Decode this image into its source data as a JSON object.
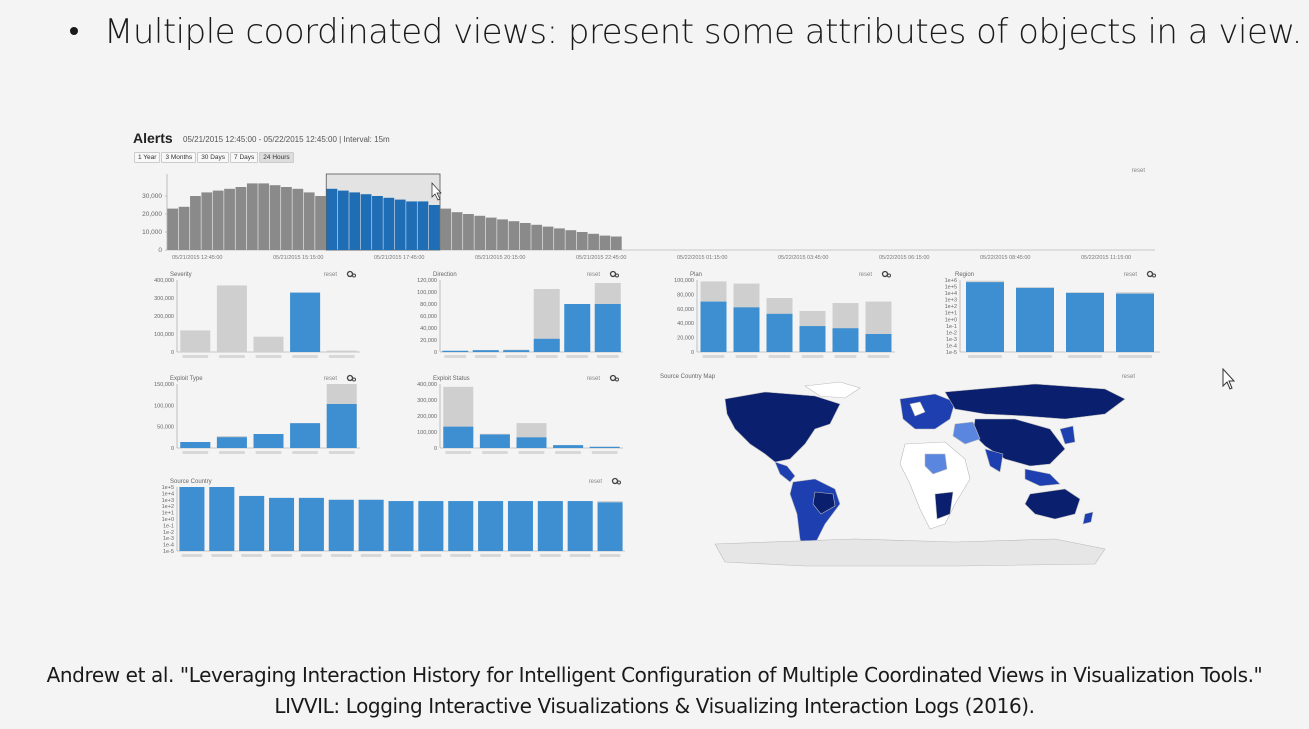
{
  "slide": {
    "bullet": "Multiple coordinated views: present some attributes of objects in a view.",
    "caption_line1": "Andrew et al. \"Leveraging Interaction History for Intelligent Configuration of Multiple Coordinated Views in Visualization Tools.\"",
    "caption_line2": "LIVVIL: Logging Interactive Visualizations & Visualizing Interaction Logs (2016)."
  },
  "dashboard": {
    "title": "Alerts",
    "range_text": "05/21/2015 12:45:00 - 05/22/2015 12:45:00 | Interval: 15m",
    "range_buttons": [
      "1 Year",
      "3 Months",
      "30 Days",
      "7 Days",
      "24 Hours"
    ],
    "active_range": "24 Hours",
    "reset_label": "reset"
  },
  "colors": {
    "selected": "#3d8fd1",
    "selected_dark": "#1f6db5",
    "unselected": "#8a8a8a",
    "light_gray": "#cfcfcf",
    "map_dark": "#0a1f6e",
    "map_mid": "#1d3fb0",
    "map_light": "#5b86e0"
  },
  "chart_data": [
    {
      "type": "bar",
      "name_id": "timeline",
      "x_ticks": [
        "05/21/2015 12:45:00",
        "05/21/2015 15:15:00",
        "05/21/2015 17:45:00",
        "05/21/2015 20:15:00",
        "05/21/2015 22:45:00",
        "05/22/2015 01:15:00",
        "05/22/2015 03:45:00",
        "05/22/2015 06:15:00",
        "05/22/2015 08:45:00",
        "05/22/2015 11:15:00"
      ],
      "y_ticks": [
        "0",
        "10,000",
        "20,000",
        "30,000"
      ],
      "ylim": [
        0,
        40000
      ],
      "values": [
        23000,
        24000,
        30000,
        32000,
        33000,
        34000,
        35000,
        37000,
        37000,
        36000,
        35000,
        34000,
        32000,
        30000,
        34000,
        33000,
        32000,
        31000,
        30000,
        29000,
        28000,
        27000,
        27000,
        25000,
        23000,
        21000,
        20000,
        19000,
        18000,
        17000,
        16000,
        15000,
        14000,
        13000,
        12000,
        11000,
        10000,
        9000,
        8000,
        7500
      ],
      "selected_range": [
        14,
        23
      ]
    },
    {
      "type": "bar",
      "name_id": "severity",
      "title": "Severity",
      "y_ticks": [
        "0",
        "100,000",
        "200,000",
        "300,000",
        "400,000"
      ],
      "ylim": [
        0,
        400000
      ],
      "total": [
        120000,
        370000,
        85000,
        330000,
        8000
      ],
      "selected": [
        0,
        0,
        0,
        330000,
        0
      ]
    },
    {
      "type": "bar",
      "name_id": "direction",
      "title": "Direction",
      "y_ticks": [
        "0",
        "20,000",
        "40,000",
        "60,000",
        "80,000",
        "100,000",
        "120,000"
      ],
      "ylim": [
        0,
        120000
      ],
      "total": [
        2000,
        3000,
        4000,
        105000,
        15000,
        115000
      ],
      "selected": [
        2000,
        3000,
        3000,
        22000,
        80000,
        80000
      ]
    },
    {
      "type": "bar",
      "name_id": "plan",
      "title": "Plan",
      "y_ticks": [
        "0",
        "20,000",
        "40,000",
        "60,000",
        "80,000",
        "100,000"
      ],
      "ylim": [
        0,
        100000
      ],
      "total": [
        98000,
        95000,
        75000,
        57000,
        68000,
        70000
      ],
      "selected": [
        70000,
        62000,
        53000,
        36000,
        33000,
        25000
      ]
    },
    {
      "type": "bar",
      "name_id": "region",
      "title": "Region",
      "y_ticks": [
        "1e-5",
        "1e-4",
        "1e-3",
        "1e-2",
        "1e-1",
        "1e+0",
        "1e+1",
        "1e+2",
        "1e+3",
        "1e+4",
        "1e+5",
        "1e+6"
      ],
      "ylim": [
        0,
        100
      ],
      "scale": "log",
      "total": [
        99,
        90,
        83,
        83
      ],
      "selected": [
        97,
        89,
        82,
        81
      ]
    },
    {
      "type": "bar",
      "name_id": "exploit-type",
      "title": "Exploit Type",
      "y_ticks": [
        "0",
        "50,000",
        "100,000",
        "150,000"
      ],
      "ylim": [
        0,
        160000
      ],
      "total": [
        15000,
        30000,
        35000,
        62000,
        160000
      ],
      "selected": [
        15000,
        27000,
        35000,
        62000,
        110000
      ]
    },
    {
      "type": "bar",
      "name_id": "exploit-status",
      "title": "Exploit Status",
      "y_ticks": [
        "0",
        "100,000",
        "200,000",
        "300,000",
        "400,000"
      ],
      "ylim": [
        0,
        450000
      ],
      "total": [
        430000,
        100000,
        175000,
        20000,
        10000
      ],
      "selected": [
        150000,
        95000,
        75000,
        20000,
        8000
      ]
    },
    {
      "type": "bar",
      "name_id": "source-country",
      "title": "Source Country",
      "y_ticks": [
        "1e-5",
        "1e-4",
        "1e-3",
        "1e-2",
        "1e-1",
        "1e+0",
        "1e+1",
        "1e+2",
        "1e+3",
        "1e+4",
        "1e+5"
      ],
      "ylim": [
        0,
        100
      ],
      "scale": "log",
      "total": [
        100,
        100,
        86,
        83,
        83,
        80,
        80,
        78,
        78,
        78,
        78,
        78,
        78,
        78,
        78
      ],
      "selected": [
        100,
        100,
        86,
        83,
        83,
        80,
        80,
        78,
        78,
        78,
        78,
        78,
        78,
        78,
        76
      ]
    }
  ],
  "map": {
    "title": "Source Country Map"
  }
}
